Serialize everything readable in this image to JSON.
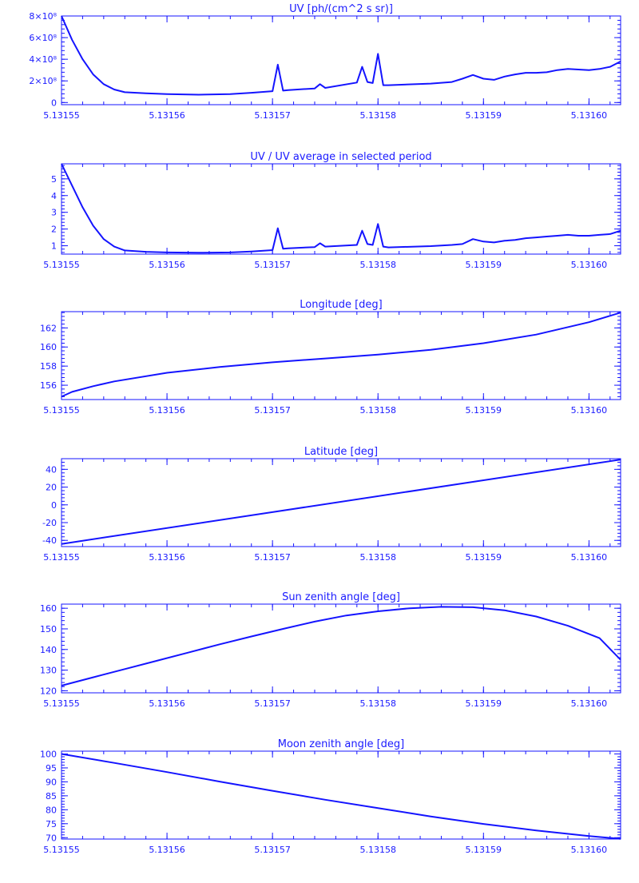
{
  "color": "#1414ff",
  "chart_data": [
    {
      "type": "line",
      "title": "UV [ph/(cm^2 s sr)]",
      "xlim": [
        5.13155,
        5.131603
      ],
      "ylim": [
        -0.2,
        8.0
      ],
      "xticks": [
        "5.13155",
        "5.13156",
        "5.13157",
        "5.13158",
        "5.13159",
        "5.13160"
      ],
      "yticks": [
        {
          "v": 0,
          "label": "0"
        },
        {
          "v": 2,
          "label": "2×10⁸"
        },
        {
          "v": 4,
          "label": "4×10⁸"
        },
        {
          "v": 6,
          "label": "6×10⁸"
        },
        {
          "v": 8,
          "label": "8×10⁸"
        }
      ],
      "series": [
        {
          "x": [
            5.13155,
            5.131551,
            5.131552,
            5.131553,
            5.131554,
            5.131555,
            5.131556,
            5.131558,
            5.13156,
            5.131563,
            5.131566,
            5.131568,
            5.13157,
            5.1315705,
            5.131571,
            5.1315715,
            5.131574,
            5.1315745,
            5.131575,
            5.131578,
            5.1315785,
            5.131579,
            5.1315795,
            5.13158,
            5.1315805,
            5.131581,
            5.131585,
            5.131587,
            5.131588,
            5.131589,
            5.13159,
            5.131591,
            5.131592,
            5.131593,
            5.131594,
            5.131595,
            5.131596,
            5.131597,
            5.131598,
            5.131599,
            5.1316,
            5.131601,
            5.131602,
            5.131603
          ],
          "y": [
            8.0,
            5.8,
            4.0,
            2.6,
            1.7,
            1.2,
            0.95,
            0.85,
            0.78,
            0.72,
            0.78,
            0.9,
            1.05,
            3.5,
            1.1,
            1.15,
            1.3,
            1.7,
            1.35,
            1.85,
            3.3,
            1.9,
            1.8,
            4.5,
            1.6,
            1.6,
            1.75,
            1.9,
            2.2,
            2.55,
            2.2,
            2.1,
            2.4,
            2.6,
            2.75,
            2.75,
            2.8,
            3.0,
            3.1,
            3.05,
            3.0,
            3.1,
            3.3,
            3.8
          ]
        }
      ]
    },
    {
      "type": "line",
      "title": "UV / UV average in selected period",
      "xlim": [
        5.13155,
        5.131603
      ],
      "ylim": [
        0.5,
        5.9
      ],
      "xticks": [
        "5.13155",
        "5.13156",
        "5.13157",
        "5.13158",
        "5.13159",
        "5.13160"
      ],
      "yticks": [
        {
          "v": 1,
          "label": "1"
        },
        {
          "v": 2,
          "label": "2"
        },
        {
          "v": 3,
          "label": "3"
        },
        {
          "v": 4,
          "label": "4"
        },
        {
          "v": 5,
          "label": "5"
        }
      ],
      "series": [
        {
          "x": [
            5.13155,
            5.131551,
            5.131552,
            5.131553,
            5.131554,
            5.131555,
            5.131556,
            5.131558,
            5.13156,
            5.131563,
            5.131566,
            5.131568,
            5.13157,
            5.1315705,
            5.131571,
            5.1315715,
            5.131574,
            5.1315745,
            5.131575,
            5.131578,
            5.1315785,
            5.131579,
            5.1315795,
            5.13158,
            5.1315805,
            5.131581,
            5.131585,
            5.131587,
            5.131588,
            5.131589,
            5.13159,
            5.131591,
            5.131592,
            5.131593,
            5.131594,
            5.131595,
            5.131596,
            5.131597,
            5.131598,
            5.131599,
            5.1316,
            5.131601,
            5.131602,
            5.131603
          ],
          "y": [
            5.9,
            4.6,
            3.3,
            2.2,
            1.4,
            0.95,
            0.72,
            0.64,
            0.6,
            0.58,
            0.6,
            0.66,
            0.74,
            2.05,
            0.82,
            0.85,
            0.92,
            1.15,
            0.95,
            1.05,
            1.9,
            1.1,
            1.05,
            2.3,
            0.95,
            0.9,
            0.98,
            1.05,
            1.1,
            1.4,
            1.25,
            1.2,
            1.3,
            1.35,
            1.45,
            1.5,
            1.55,
            1.6,
            1.65,
            1.6,
            1.6,
            1.65,
            1.7,
            1.9
          ]
        }
      ]
    },
    {
      "type": "line",
      "title": "Longitude [deg]",
      "xlim": [
        5.13155,
        5.131603
      ],
      "ylim": [
        154.5,
        163.7
      ],
      "xticks": [
        "5.13155",
        "5.13156",
        "5.13157",
        "5.13158",
        "5.13159",
        "5.13160"
      ],
      "yticks": [
        {
          "v": 156,
          "label": "156"
        },
        {
          "v": 158,
          "label": "158"
        },
        {
          "v": 160,
          "label": "160"
        },
        {
          "v": 162,
          "label": "162"
        }
      ],
      "series": [
        {
          "x": [
            5.13155,
            5.131551,
            5.131553,
            5.131555,
            5.13156,
            5.131565,
            5.13157,
            5.131575,
            5.13158,
            5.131585,
            5.13159,
            5.131595,
            5.1316,
            5.131603
          ],
          "y": [
            154.8,
            155.3,
            155.9,
            156.4,
            157.3,
            157.9,
            158.4,
            158.8,
            159.2,
            159.7,
            160.4,
            161.3,
            162.6,
            163.6
          ]
        }
      ]
    },
    {
      "type": "line",
      "title": "Latitude [deg]",
      "xlim": [
        5.13155,
        5.131603
      ],
      "ylim": [
        -47,
        52
      ],
      "xticks": [
        "5.13155",
        "5.13156",
        "5.13157",
        "5.13158",
        "5.13159",
        "5.13160"
      ],
      "yticks": [
        {
          "v": -40,
          "label": "-40"
        },
        {
          "v": -20,
          "label": "-20"
        },
        {
          "v": 0,
          "label": "0"
        },
        {
          "v": 20,
          "label": "20"
        },
        {
          "v": 40,
          "label": "40"
        }
      ],
      "series": [
        {
          "x": [
            5.13155,
            5.131603
          ],
          "y": [
            -44,
            51
          ]
        }
      ]
    },
    {
      "type": "line",
      "title": "Sun zenith angle [deg]",
      "xlim": [
        5.13155,
        5.131603
      ],
      "ylim": [
        119,
        162
      ],
      "xticks": [
        "5.13155",
        "5.13156",
        "5.13157",
        "5.13158",
        "5.13159",
        "5.13160"
      ],
      "yticks": [
        {
          "v": 120,
          "label": "120"
        },
        {
          "v": 130,
          "label": "130"
        },
        {
          "v": 140,
          "label": "140"
        },
        {
          "v": 150,
          "label": "150"
        },
        {
          "v": 160,
          "label": "160"
        }
      ],
      "series": [
        {
          "x": [
            5.13155,
            5.131553,
            5.131556,
            5.131559,
            5.131562,
            5.131565,
            5.131568,
            5.131571,
            5.131574,
            5.131577,
            5.13158,
            5.131583,
            5.131586,
            5.131589,
            5.131592,
            5.131595,
            5.131598,
            5.131601,
            5.131603
          ],
          "y": [
            122.5,
            126.5,
            130.5,
            134.5,
            138.5,
            142.5,
            146.3,
            150.0,
            153.5,
            156.5,
            158.5,
            160.0,
            160.7,
            160.5,
            159.0,
            156.0,
            151.5,
            145.5,
            135.0
          ]
        }
      ]
    },
    {
      "type": "line",
      "title": "Moon zenith angle [deg]",
      "xlim": [
        5.13155,
        5.131603
      ],
      "ylim": [
        69.5,
        101
      ],
      "xticks": [
        "5.13155",
        "5.13156",
        "5.13157",
        "5.13158",
        "5.13159",
        "5.13160"
      ],
      "yticks": [
        {
          "v": 70,
          "label": "70"
        },
        {
          "v": 75,
          "label": "75"
        },
        {
          "v": 80,
          "label": "80"
        },
        {
          "v": 85,
          "label": "85"
        },
        {
          "v": 90,
          "label": "90"
        },
        {
          "v": 95,
          "label": "95"
        },
        {
          "v": 100,
          "label": "100"
        }
      ],
      "series": [
        {
          "x": [
            5.13155,
            5.131555,
            5.13156,
            5.131565,
            5.13157,
            5.131575,
            5.13158,
            5.131585,
            5.13159,
            5.131595,
            5.1316,
            5.131603
          ],
          "y": [
            100.0,
            96.8,
            93.5,
            90.1,
            86.8,
            83.6,
            80.6,
            77.6,
            74.9,
            72.6,
            70.6,
            69.6
          ]
        }
      ]
    }
  ]
}
